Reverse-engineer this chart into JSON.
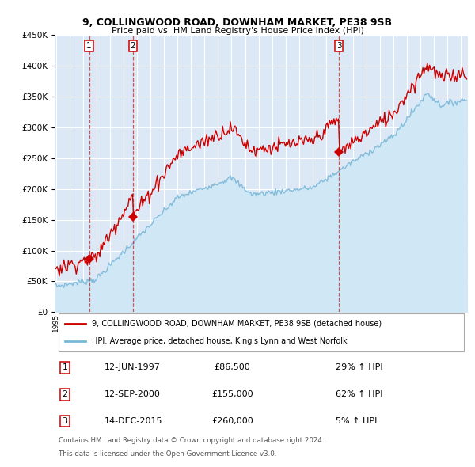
{
  "title": "9, COLLINGWOOD ROAD, DOWNHAM MARKET, PE38 9SB",
  "subtitle": "Price paid vs. HM Land Registry's House Price Index (HPI)",
  "legend_line1": "9, COLLINGWOOD ROAD, DOWNHAM MARKET, PE38 9SB (detached house)",
  "legend_line2": "HPI: Average price, detached house, King's Lynn and West Norfolk",
  "footer1": "Contains HM Land Registry data © Crown copyright and database right 2024.",
  "footer2": "This data is licensed under the Open Government Licence v3.0.",
  "sales": [
    {
      "num": 1,
      "date": "12-JUN-1997",
      "price": 86500,
      "pct": "29%",
      "dir": "↑",
      "year": 1997.45
    },
    {
      "num": 2,
      "date": "12-SEP-2000",
      "price": 155000,
      "pct": "62%",
      "dir": "↑",
      "year": 2000.7
    },
    {
      "num": 3,
      "date": "14-DEC-2015",
      "price": 260000,
      "pct": "5%",
      "dir": "↑",
      "year": 2015.96
    }
  ],
  "price_color": "#cc0000",
  "hpi_line_color": "#7ab8d9",
  "hpi_fill_color": "#d0e8f5",
  "plot_bg": "#dce8f5",
  "ylim": [
    0,
    450000
  ],
  "yticks": [
    0,
    50000,
    100000,
    150000,
    200000,
    250000,
    300000,
    350000,
    400000,
    450000
  ],
  "xlim_start": 1994.9,
  "xlim_end": 2025.5
}
